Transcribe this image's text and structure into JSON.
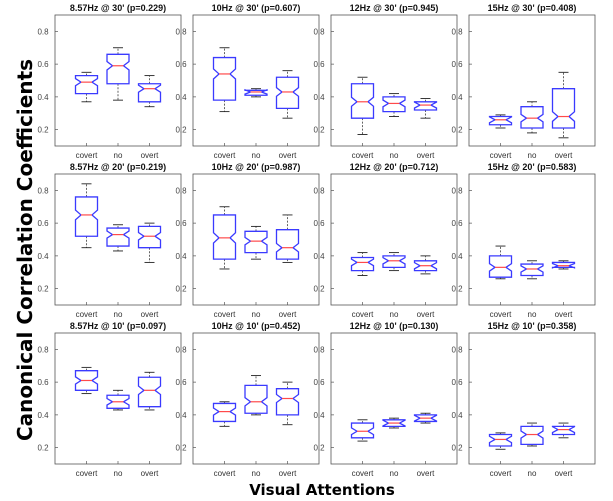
{
  "figure": {
    "ylabel": "Canonical  Correlation Coefficients",
    "xlabel": "Visual Attentions"
  },
  "colors": {
    "box": "#3a3aff",
    "median": "#ff4a4a",
    "whisker": "#222222",
    "frame": "#555555"
  },
  "chart_data": {
    "type": "boxplot",
    "categories": [
      "covert",
      "no",
      "overt"
    ],
    "ylim": [
      0.1,
      0.9
    ],
    "yticks": [
      0.2,
      0.4,
      0.6,
      0.8
    ],
    "panels": [
      {
        "title": "8.57Hz @ 30' (p=0.229)",
        "boxes": [
          {
            "whisker_low": 0.37,
            "q1": 0.42,
            "median": 0.49,
            "q3": 0.53,
            "whisker_high": 0.55
          },
          {
            "whisker_low": 0.38,
            "q1": 0.48,
            "median": 0.59,
            "q3": 0.66,
            "whisker_high": 0.7
          },
          {
            "whisker_low": 0.34,
            "q1": 0.37,
            "median": 0.45,
            "q3": 0.48,
            "whisker_high": 0.53
          }
        ]
      },
      {
        "title": "10Hz @ 30' (p=0.607)",
        "boxes": [
          {
            "whisker_low": 0.31,
            "q1": 0.38,
            "median": 0.54,
            "q3": 0.64,
            "whisker_high": 0.7
          },
          {
            "whisker_low": 0.4,
            "q1": 0.41,
            "median": 0.43,
            "q3": 0.44,
            "whisker_high": 0.45
          },
          {
            "whisker_low": 0.27,
            "q1": 0.33,
            "median": 0.43,
            "q3": 0.52,
            "whisker_high": 0.56
          }
        ]
      },
      {
        "title": "12Hz @ 30' (p=0.945)",
        "boxes": [
          {
            "whisker_low": 0.17,
            "q1": 0.27,
            "median": 0.37,
            "q3": 0.48,
            "whisker_high": 0.52
          },
          {
            "whisker_low": 0.28,
            "q1": 0.31,
            "median": 0.36,
            "q3": 0.4,
            "whisker_high": 0.42
          },
          {
            "whisker_low": 0.27,
            "q1": 0.32,
            "median": 0.35,
            "q3": 0.37,
            "whisker_high": 0.39
          }
        ]
      },
      {
        "title": "15Hz @ 30' (p=0.408)",
        "boxes": [
          {
            "whisker_low": 0.21,
            "q1": 0.23,
            "median": 0.26,
            "q3": 0.28,
            "whisker_high": 0.29
          },
          {
            "whisker_low": 0.18,
            "q1": 0.21,
            "median": 0.27,
            "q3": 0.34,
            "whisker_high": 0.37
          },
          {
            "whisker_low": 0.15,
            "q1": 0.21,
            "median": 0.28,
            "q3": 0.45,
            "whisker_high": 0.55
          }
        ]
      },
      {
        "title": "8.57Hz @ 20' (p=0.219)",
        "boxes": [
          {
            "whisker_low": 0.45,
            "q1": 0.52,
            "median": 0.65,
            "q3": 0.76,
            "whisker_high": 0.84
          },
          {
            "whisker_low": 0.43,
            "q1": 0.46,
            "median": 0.53,
            "q3": 0.57,
            "whisker_high": 0.59
          },
          {
            "whisker_low": 0.36,
            "q1": 0.45,
            "median": 0.52,
            "q3": 0.58,
            "whisker_high": 0.6
          }
        ]
      },
      {
        "title": "10Hz @ 20' (p=0.987)",
        "boxes": [
          {
            "whisker_low": 0.32,
            "q1": 0.38,
            "median": 0.51,
            "q3": 0.65,
            "whisker_high": 0.7
          },
          {
            "whisker_low": 0.38,
            "q1": 0.42,
            "median": 0.49,
            "q3": 0.55,
            "whisker_high": 0.58
          },
          {
            "whisker_low": 0.36,
            "q1": 0.38,
            "median": 0.45,
            "q3": 0.56,
            "whisker_high": 0.65
          }
        ]
      },
      {
        "title": "12Hz @ 20' (p=0.712)",
        "boxes": [
          {
            "whisker_low": 0.28,
            "q1": 0.31,
            "median": 0.36,
            "q3": 0.39,
            "whisker_high": 0.42
          },
          {
            "whisker_low": 0.31,
            "q1": 0.33,
            "median": 0.37,
            "q3": 0.4,
            "whisker_high": 0.42
          },
          {
            "whisker_low": 0.29,
            "q1": 0.31,
            "median": 0.34,
            "q3": 0.37,
            "whisker_high": 0.4
          }
        ]
      },
      {
        "title": "15Hz @ 20' (p=0.583)",
        "boxes": [
          {
            "whisker_low": 0.26,
            "q1": 0.27,
            "median": 0.33,
            "q3": 0.4,
            "whisker_high": 0.46
          },
          {
            "whisker_low": 0.26,
            "q1": 0.28,
            "median": 0.32,
            "q3": 0.35,
            "whisker_high": 0.37
          },
          {
            "whisker_low": 0.32,
            "q1": 0.33,
            "median": 0.34,
            "q3": 0.36,
            "whisker_high": 0.37
          }
        ]
      },
      {
        "title": "8.57Hz @ 10' (p=0.097)",
        "boxes": [
          {
            "whisker_low": 0.53,
            "q1": 0.55,
            "median": 0.61,
            "q3": 0.67,
            "whisker_high": 0.69
          },
          {
            "whisker_low": 0.43,
            "q1": 0.44,
            "median": 0.48,
            "q3": 0.52,
            "whisker_high": 0.55
          },
          {
            "whisker_low": 0.43,
            "q1": 0.45,
            "median": 0.55,
            "q3": 0.63,
            "whisker_high": 0.66
          }
        ]
      },
      {
        "title": "10Hz @ 10' (p=0.452)",
        "boxes": [
          {
            "whisker_low": 0.33,
            "q1": 0.36,
            "median": 0.42,
            "q3": 0.47,
            "whisker_high": 0.48
          },
          {
            "whisker_low": 0.4,
            "q1": 0.41,
            "median": 0.48,
            "q3": 0.58,
            "whisker_high": 0.64
          },
          {
            "whisker_low": 0.34,
            "q1": 0.4,
            "median": 0.5,
            "q3": 0.56,
            "whisker_high": 0.6
          }
        ]
      },
      {
        "title": "12Hz @ 10' (p=0.130)",
        "boxes": [
          {
            "whisker_low": 0.24,
            "q1": 0.26,
            "median": 0.3,
            "q3": 0.35,
            "whisker_high": 0.37
          },
          {
            "whisker_low": 0.32,
            "q1": 0.33,
            "median": 0.35,
            "q3": 0.37,
            "whisker_high": 0.38
          },
          {
            "whisker_low": 0.35,
            "q1": 0.36,
            "median": 0.38,
            "q3": 0.4,
            "whisker_high": 0.41
          }
        ]
      },
      {
        "title": "15Hz @ 10' (p=0.358)",
        "boxes": [
          {
            "whisker_low": 0.19,
            "q1": 0.21,
            "median": 0.25,
            "q3": 0.28,
            "whisker_high": 0.29
          },
          {
            "whisker_low": 0.21,
            "q1": 0.22,
            "median": 0.28,
            "q3": 0.33,
            "whisker_high": 0.35
          },
          {
            "whisker_low": 0.26,
            "q1": 0.28,
            "median": 0.31,
            "q3": 0.33,
            "whisker_high": 0.35
          }
        ]
      }
    ]
  }
}
